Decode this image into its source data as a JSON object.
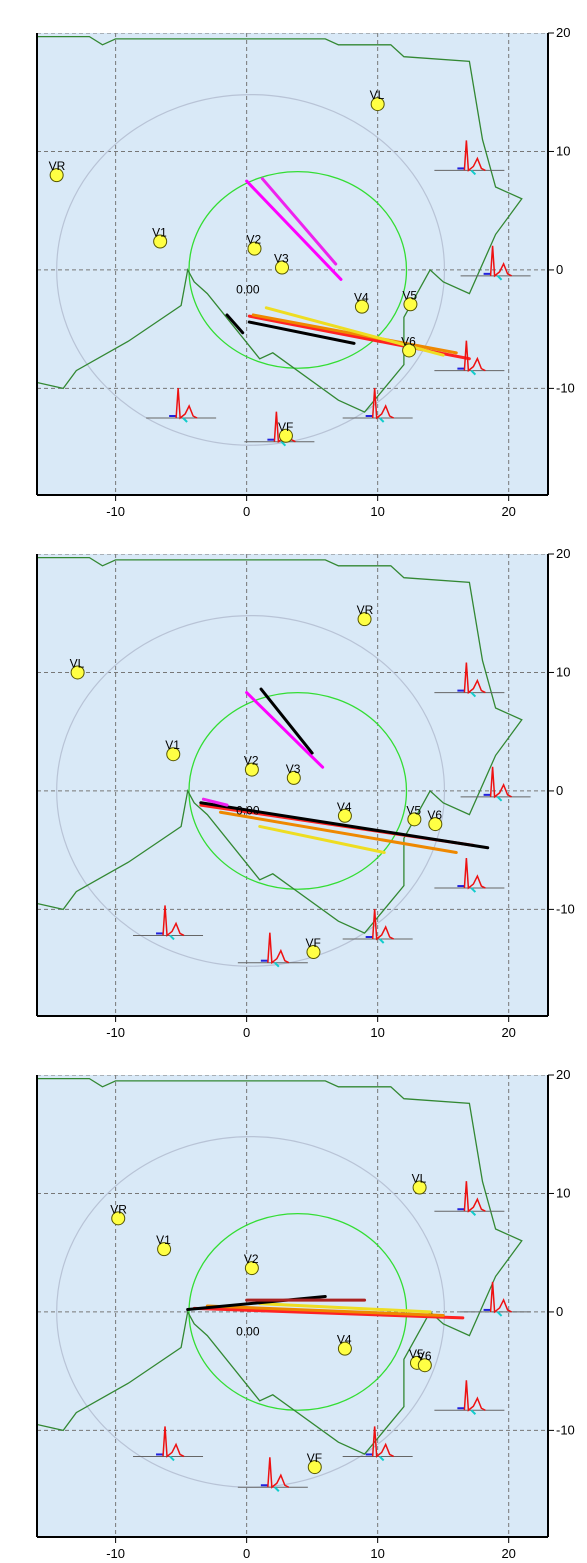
{
  "chart_data": [
    {
      "type": "scatter",
      "xlim": [
        -16,
        23
      ],
      "ylim": [
        -19,
        20
      ],
      "grid": true,
      "x_ticks": [
        -10,
        0,
        10,
        20
      ],
      "y_ticks": [
        20,
        10,
        0,
        -10
      ],
      "colors": {
        "background": "#d9e9f7",
        "outer_circle": "#b8c3d6",
        "inner_circle": "#33dd33",
        "body_outline": "#338833",
        "electrode": "#ffff44"
      },
      "inner_circle": {
        "cx": 3.9,
        "cy": 0,
        "r": 8.3
      },
      "outer_circle": {
        "cx": 0.3,
        "cy": 0,
        "r": 14.8
      },
      "body_outline": [
        [
          -16,
          19.7
        ],
        [
          -12,
          19.7
        ],
        [
          -11,
          19
        ],
        [
          -10,
          19.5
        ],
        [
          6,
          19.5
        ],
        [
          7,
          19
        ],
        [
          11,
          19
        ],
        [
          12,
          18
        ],
        [
          17,
          17.6
        ],
        [
          18,
          11
        ],
        [
          19,
          7
        ],
        [
          21,
          6
        ],
        [
          19,
          3
        ],
        [
          17,
          -2
        ],
        [
          15,
          -1
        ],
        [
          14,
          0
        ],
        [
          12,
          -4
        ],
        [
          12,
          -8
        ],
        [
          9,
          -12
        ],
        [
          7,
          -11
        ],
        [
          2,
          -7
        ],
        [
          1,
          -7.5
        ],
        [
          -3,
          -2
        ],
        [
          -4,
          -1
        ],
        [
          -4.5,
          0
        ],
        [
          -5,
          -3
        ],
        [
          -9,
          -6
        ],
        [
          -13,
          -8.5
        ],
        [
          -14,
          -10
        ],
        [
          -16,
          -9.5
        ]
      ],
      "electrodes": [
        {
          "label": "VL",
          "x": 10,
          "y": 14
        },
        {
          "label": "VR",
          "x": -14.5,
          "y": 8
        },
        {
          "label": "V1",
          "x": -6.6,
          "y": 2.4
        },
        {
          "label": "V2",
          "x": 0.6,
          "y": 1.8
        },
        {
          "label": "V3",
          "x": 2.7,
          "y": 0.2
        },
        {
          "label": "V4",
          "x": 8.8,
          "y": -3.1
        },
        {
          "label": "V5",
          "x": 12.5,
          "y": -2.9
        },
        {
          "label": "V6",
          "x": 12.4,
          "y": -6.8
        },
        {
          "label": "VF",
          "x": 3.0,
          "y": -14.0
        }
      ],
      "annotation": "0.00",
      "vectors": [
        {
          "color": "#ff00ff",
          "x0": 0,
          "y0": 7.5,
          "x1": 7.2,
          "y1": -0.8
        },
        {
          "color": "#ee22ee",
          "x0": 1.2,
          "y0": 7.7,
          "x1": 6.8,
          "y1": 0.5
        },
        {
          "color": "#ff2222",
          "x0": 0.2,
          "y0": -3.9,
          "x1": 17,
          "y1": -7.5
        },
        {
          "color": "#ee8800",
          "x0": 0.5,
          "y0": -3.8,
          "x1": 16,
          "y1": -7
        },
        {
          "color": "#eedd22",
          "x0": 1.5,
          "y0": -3.2,
          "x1": 15,
          "y1": -7.2
        },
        {
          "color": "#000000",
          "x0": 0.2,
          "y0": -4.4,
          "x1": 8.2,
          "y1": -6.2
        },
        {
          "color": "#000000",
          "x0": -1.5,
          "y0": -3.8,
          "x1": -0.3,
          "y1": -5.3
        }
      ],
      "ecg_traces": [
        {
          "x": 17,
          "y": 8.4
        },
        {
          "x": 19,
          "y": -0.5
        },
        {
          "x": 17,
          "y": -8.5
        },
        {
          "x": -5,
          "y": -12.5
        },
        {
          "x": 2.5,
          "y": -14.5
        },
        {
          "x": 10,
          "y": -12.5
        }
      ]
    },
    {
      "type": "scatter",
      "xlim": [
        -16,
        23
      ],
      "ylim": [
        -19,
        20
      ],
      "grid": true,
      "x_ticks": [
        -10,
        0,
        10,
        20
      ],
      "y_ticks": [
        20,
        10,
        0,
        -10
      ],
      "colors": {
        "background": "#d9e9f7",
        "outer_circle": "#b8c3d6",
        "inner_circle": "#33dd33",
        "body_outline": "#338833",
        "electrode": "#ffff44"
      },
      "inner_circle": {
        "cx": 3.9,
        "cy": 0,
        "r": 8.3
      },
      "outer_circle": {
        "cx": 0.3,
        "cy": 0,
        "r": 14.8
      },
      "body_outline": [
        [
          -16,
          19.7
        ],
        [
          -12,
          19.7
        ],
        [
          -11,
          19
        ],
        [
          -10,
          19.5
        ],
        [
          6,
          19.5
        ],
        [
          7,
          19
        ],
        [
          11,
          19
        ],
        [
          12,
          18
        ],
        [
          17,
          17.6
        ],
        [
          18,
          11
        ],
        [
          19,
          7
        ],
        [
          21,
          6
        ],
        [
          19,
          3
        ],
        [
          17,
          -2
        ],
        [
          15,
          -1
        ],
        [
          14,
          0
        ],
        [
          12,
          -4
        ],
        [
          12,
          -8
        ],
        [
          9,
          -12
        ],
        [
          7,
          -11
        ],
        [
          2,
          -7
        ],
        [
          1,
          -7.5
        ],
        [
          -3,
          -2
        ],
        [
          -4,
          -1
        ],
        [
          -4.5,
          0
        ],
        [
          -5,
          -3
        ],
        [
          -9,
          -6
        ],
        [
          -13,
          -8.5
        ],
        [
          -14,
          -10
        ],
        [
          -16,
          -9.5
        ]
      ],
      "electrodes": [
        {
          "label": "VR",
          "x": 9,
          "y": 14.5
        },
        {
          "label": "VL",
          "x": -12.9,
          "y": 10
        },
        {
          "label": "V1",
          "x": -5.6,
          "y": 3.1
        },
        {
          "label": "V2",
          "x": 0.4,
          "y": 1.8
        },
        {
          "label": "V3",
          "x": 3.6,
          "y": 1.1
        },
        {
          "label": "V4",
          "x": 7.5,
          "y": -2.1
        },
        {
          "label": "V5",
          "x": 12.8,
          "y": -2.4
        },
        {
          "label": "V6",
          "x": 14.4,
          "y": -2.8
        },
        {
          "label": "VF",
          "x": 5.1,
          "y": -13.6
        }
      ],
      "annotation": "0.00",
      "vectors": [
        {
          "color": "#ff00ff",
          "x0": 0,
          "y0": 8.3,
          "x1": 5.8,
          "y1": 2
        },
        {
          "color": "#000000",
          "x0": 1.1,
          "y0": 8.6,
          "x1": 5,
          "y1": 3.2
        },
        {
          "color": "#ff2222",
          "x0": -3.5,
          "y0": -1.2,
          "x1": 17.3,
          "y1": -4.6
        },
        {
          "color": "#000000",
          "x0": -3.5,
          "y0": -1,
          "x1": 18.4,
          "y1": -4.8
        },
        {
          "color": "#ee8800",
          "x0": -2,
          "y0": -1.8,
          "x1": 16,
          "y1": -5.2
        },
        {
          "color": "#eedd22",
          "x0": 1,
          "y0": -3,
          "x1": 10.5,
          "y1": -5.2
        },
        {
          "color": "#ee22ee",
          "x0": -3.3,
          "y0": -0.7,
          "x1": -1.5,
          "y1": -1.2
        }
      ],
      "ecg_traces": [
        {
          "x": 17,
          "y": 8.3
        },
        {
          "x": 19,
          "y": -0.5
        },
        {
          "x": 17,
          "y": -8.2
        },
        {
          "x": -6,
          "y": -12.2
        },
        {
          "x": 2,
          "y": -14.5
        },
        {
          "x": 10,
          "y": -12.5
        }
      ]
    },
    {
      "type": "scatter",
      "xlim": [
        -16,
        23
      ],
      "ylim": [
        -19,
        20
      ],
      "grid": true,
      "x_ticks": [
        -10,
        0,
        10,
        20
      ],
      "y_ticks": [
        20,
        10,
        0,
        -10
      ],
      "colors": {
        "background": "#d9e9f7",
        "outer_circle": "#b8c3d6",
        "inner_circle": "#33dd33",
        "body_outline": "#338833",
        "electrode": "#ffff44"
      },
      "inner_circle": {
        "cx": 3.9,
        "cy": 0,
        "r": 8.3
      },
      "outer_circle": {
        "cx": 0.3,
        "cy": 0,
        "r": 14.8
      },
      "body_outline": [
        [
          -16,
          19.7
        ],
        [
          -12,
          19.7
        ],
        [
          -11,
          19
        ],
        [
          -10,
          19.5
        ],
        [
          6,
          19.5
        ],
        [
          7,
          19
        ],
        [
          11,
          19
        ],
        [
          12,
          18
        ],
        [
          17,
          17.6
        ],
        [
          18,
          11
        ],
        [
          19,
          7
        ],
        [
          21,
          6
        ],
        [
          19,
          3
        ],
        [
          17,
          -2
        ],
        [
          15,
          -1
        ],
        [
          14,
          0
        ],
        [
          12,
          -4
        ],
        [
          12,
          -8
        ],
        [
          9,
          -12
        ],
        [
          7,
          -11
        ],
        [
          2,
          -7
        ],
        [
          1,
          -7.5
        ],
        [
          -3,
          -2
        ],
        [
          -4,
          -1
        ],
        [
          -4.5,
          0
        ],
        [
          -5,
          -3
        ],
        [
          -9,
          -6
        ],
        [
          -13,
          -8.5
        ],
        [
          -14,
          -10
        ],
        [
          -16,
          -9.5
        ]
      ],
      "electrodes": [
        {
          "label": "VL",
          "x": 13.2,
          "y": 10.5
        },
        {
          "label": "VR",
          "x": -9.8,
          "y": 7.9
        },
        {
          "label": "V1",
          "x": -6.3,
          "y": 5.3
        },
        {
          "label": "V2",
          "x": 0.4,
          "y": 3.7
        },
        {
          "label": "V4",
          "x": 7.5,
          "y": -3.1
        },
        {
          "label": "V5",
          "x": 13,
          "y": -4.3
        },
        {
          "label": "V6",
          "x": 13.6,
          "y": -4.5
        },
        {
          "label": "VF",
          "x": 5.2,
          "y": -13.1
        }
      ],
      "annotation": "0.00",
      "vectors": [
        {
          "color": "#ff2222",
          "x0": -4,
          "y0": 0.3,
          "x1": 16.5,
          "y1": -0.5
        },
        {
          "color": "#ee8800",
          "x0": -3,
          "y0": 0.5,
          "x1": 15,
          "y1": -0.3
        },
        {
          "color": "#eedd22",
          "x0": 1,
          "y0": 0.7,
          "x1": 14,
          "y1": 0
        },
        {
          "color": "#000000",
          "x0": -4.5,
          "y0": 0.2,
          "x1": 6,
          "y1": 1.3
        },
        {
          "color": "#aa2222",
          "x0": 0,
          "y0": 1,
          "x1": 9,
          "y1": 1
        }
      ],
      "ecg_traces": [
        {
          "x": 17,
          "y": 8.5
        },
        {
          "x": 19,
          "y": 0
        },
        {
          "x": 17,
          "y": -8.3
        },
        {
          "x": -6,
          "y": -12.2
        },
        {
          "x": 2,
          "y": -14.8
        },
        {
          "x": 10,
          "y": -12.2
        }
      ]
    }
  ]
}
